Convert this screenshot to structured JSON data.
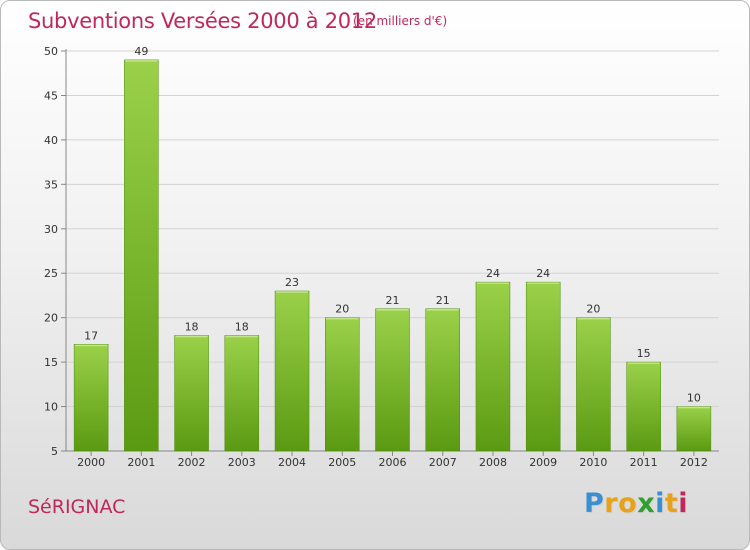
{
  "header": {
    "title": "Subventions Versées 2000 à 2012",
    "subtitle": "(en milliers d'€)"
  },
  "footer": {
    "commune": "SéRIGNAC",
    "logo": [
      "P",
      "r",
      "o",
      "x",
      "i",
      "t",
      "i"
    ],
    "logo_colors": [
      "#3a8fd0",
      "#e8a21a",
      "#e8a21a",
      "#2fa02f",
      "#3a8fd0",
      "#e8a21a",
      "#c0285a"
    ]
  },
  "chart_data": {
    "type": "bar",
    "categories": [
      "2000",
      "2001",
      "2002",
      "2003",
      "2004",
      "2005",
      "2006",
      "2007",
      "2008",
      "2009",
      "2010",
      "2011",
      "2012"
    ],
    "values": [
      17,
      49,
      18,
      18,
      23,
      20,
      21,
      21,
      24,
      24,
      20,
      15,
      10
    ],
    "ylim": [
      5,
      50
    ],
    "yticks": [
      5,
      10,
      15,
      20,
      25,
      30,
      35,
      40,
      45,
      50
    ],
    "grid": true,
    "bar_color_top": "#9bd14a",
    "bar_color_bottom": "#5a9a12",
    "label_color": "#333333",
    "axis_color": "#888888",
    "grid_color": "#d3d3d3"
  }
}
